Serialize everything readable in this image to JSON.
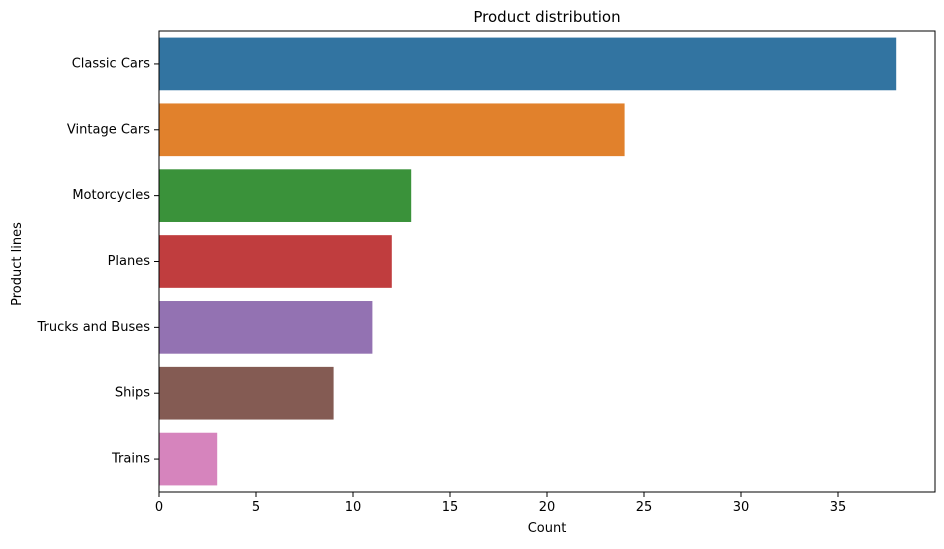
{
  "chart_data": {
    "type": "bar",
    "orientation": "horizontal",
    "title": "Product distribution",
    "xlabel": "Count",
    "ylabel": "Product lines",
    "categories": [
      "Classic Cars",
      "Vintage Cars",
      "Motorcycles",
      "Planes",
      "Trucks and Buses",
      "Ships",
      "Trains"
    ],
    "values": [
      38,
      24,
      13,
      12,
      11,
      9,
      3
    ],
    "colors": [
      "#3274a1",
      "#e1812c",
      "#3a923a",
      "#c03d3e",
      "#9372b2",
      "#845b53",
      "#d684bd"
    ],
    "xlim": [
      0,
      40
    ],
    "xticks": [
      0,
      5,
      10,
      15,
      20,
      25,
      30,
      35
    ],
    "grid": false,
    "legend": "none"
  }
}
